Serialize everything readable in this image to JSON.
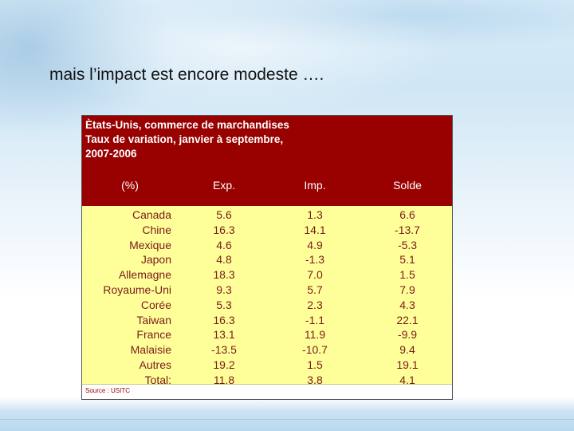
{
  "slide": {
    "title": "mais l’impact est encore modeste …."
  },
  "table": {
    "title": "Ètats-Unis, commerce de marchandises\nTaux de variation, janvier à septembre,\n2007-2006",
    "columns": [
      "(%)",
      "Exp.",
      "Imp.",
      "Solde"
    ],
    "rows": [
      {
        "country": "Canada",
        "exp": "5.6",
        "imp": "1.3",
        "solde": "6.6"
      },
      {
        "country": "Chine",
        "exp": "16.3",
        "imp": "14.1",
        "solde": "-13.7"
      },
      {
        "country": "Mexique",
        "exp": "4.6",
        "imp": "4.9",
        "solde": "-5.3"
      },
      {
        "country": "Japon",
        "exp": "4.8",
        "imp": "-1.3",
        "solde": "5.1"
      },
      {
        "country": "Allemagne",
        "exp": "18.3",
        "imp": "7.0",
        "solde": "1.5"
      },
      {
        "country": "Royaume-Uni",
        "exp": "9.3",
        "imp": "5.7",
        "solde": "7.9"
      },
      {
        "country": "Corée",
        "exp": "5.3",
        "imp": "2.3",
        "solde": "4.3"
      },
      {
        "country": "Taiwan",
        "exp": "16.3",
        "imp": "-1.1",
        "solde": "22.1"
      },
      {
        "country": "France",
        "exp": "13.1",
        "imp": "11.9",
        "solde": "-9.9"
      },
      {
        "country": "Malaisie",
        "exp": "-13.5",
        "imp": "-10.7",
        "solde": "9.4"
      },
      {
        "country": "Autres",
        "exp": "19.2",
        "imp": "1.5",
        "solde": "19.1"
      },
      {
        "country": "Total:",
        "exp": "11.8",
        "imp": "3.8",
        "solde": "4.1"
      }
    ],
    "source": "Source : USITC"
  },
  "colors": {
    "header_bg": "#990000",
    "body_bg": "#ffff99",
    "body_text": "#7a1a1a"
  }
}
